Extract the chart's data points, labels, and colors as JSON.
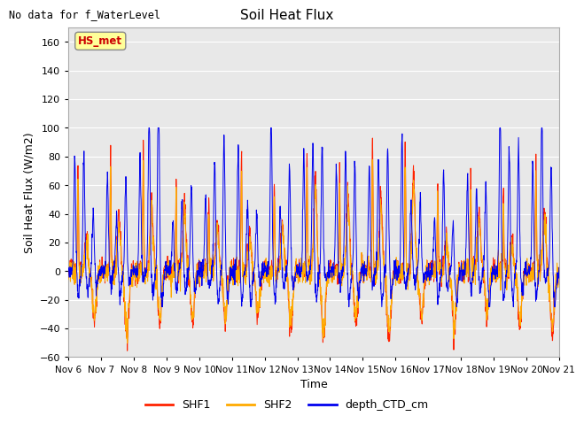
{
  "title": "Soil Heat Flux",
  "suptitle": "No data for f_WaterLevel",
  "ylabel": "Soil Heat Flux (W/m2)",
  "xlabel": "Time",
  "ylim": [
    -60,
    170
  ],
  "yticks": [
    -60,
    -40,
    -20,
    0,
    20,
    40,
    60,
    80,
    100,
    120,
    140,
    160
  ],
  "xtick_labels": [
    "Nov 6",
    "Nov 7",
    "Nov 8",
    "Nov 9",
    "Nov 10",
    "Nov 11",
    "Nov 12",
    "Nov 13",
    "Nov 14",
    "Nov 15",
    "Nov 16",
    "Nov 17",
    "Nov 18",
    "Nov 19",
    "Nov 20",
    "Nov 21"
  ],
  "annotation": "HS_met",
  "annotation_color": "#cc0000",
  "annotation_bg": "#ffff99",
  "colors": {
    "SHF1": "#ff2200",
    "SHF2": "#ffaa00",
    "depth_CTD_cm": "#0000ee"
  },
  "background_color": "#ffffff",
  "plot_bg": "#e8e8e8",
  "grid_color": "#ffffff",
  "num_points": 2000
}
